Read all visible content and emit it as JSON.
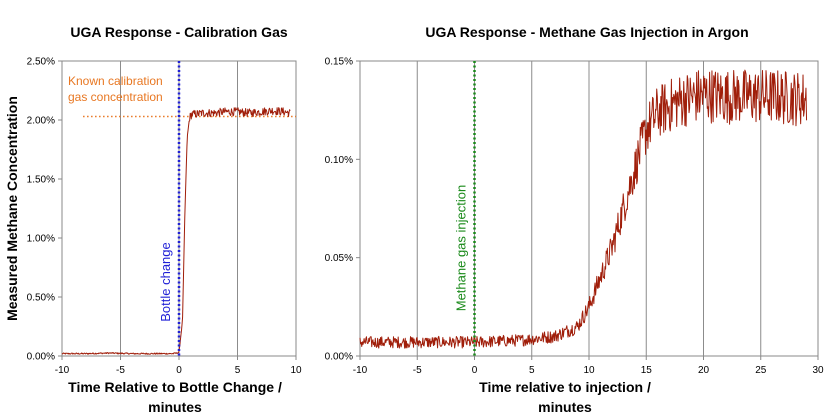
{
  "chart_data": [
    {
      "type": "line",
      "title": "UGA Response - Calibration Gas",
      "xlabel_lines": [
        "Time Relative to Bottle Change /",
        "minutes"
      ],
      "ylabel": "Measured Methane Concentration",
      "xlim": [
        -10,
        10
      ],
      "ylim": [
        0,
        2.5
      ],
      "xticks": [
        -10,
        -5,
        0,
        5,
        10
      ],
      "yticks": [
        0,
        0.5,
        1.0,
        1.5,
        2.0,
        2.5
      ],
      "ytick_labels": [
        "0.00%",
        "0.50%",
        "1.00%",
        "1.50%",
        "2.00%",
        "2.50%"
      ],
      "grid": "vertical",
      "series": [
        {
          "name": "UGA Response",
          "color": "#a01e0a",
          "x": [
            -10,
            -8,
            -6,
            -4,
            -2,
            -0.5,
            0,
            0.3,
            0.5,
            0.7,
            0.9,
            1.1,
            1.5,
            2,
            3,
            4,
            5,
            6,
            7,
            8,
            9,
            9.5
          ],
          "y": [
            0.02,
            0.02,
            0.025,
            0.02,
            0.02,
            0.02,
            0.03,
            0.3,
            1.2,
            1.85,
            2.02,
            2.05,
            2.05,
            2.06,
            2.06,
            2.07,
            2.07,
            2.06,
            2.07,
            2.08,
            2.07,
            2.06
          ]
        }
      ],
      "annotations": [
        {
          "type": "hline",
          "y": 2.03,
          "x_from": -8.2,
          "x_to": 10,
          "color": "#e87722",
          "style": "dotted",
          "label_lines": [
            "Known calibration",
            "gas concentration"
          ]
        },
        {
          "type": "vline",
          "x": 0,
          "color": "#1f1fd6",
          "style": "dotted",
          "label": "Bottle change"
        }
      ]
    },
    {
      "type": "line",
      "title": "UGA Response - Methane Gas Injection in Argon",
      "xlabel_lines": [
        "Time relative to injection /",
        "minutes"
      ],
      "ylabel": "",
      "xlim": [
        -10,
        30
      ],
      "ylim": [
        0,
        0.15
      ],
      "xticks": [
        -10,
        -5,
        0,
        5,
        10,
        15,
        20,
        25,
        30
      ],
      "yticks": [
        0,
        0.05,
        0.1,
        0.15
      ],
      "ytick_labels": [
        "0.00%",
        "0.05%",
        "0.10%",
        "0.15%"
      ],
      "grid": "vertical",
      "series": [
        {
          "name": "UGA Response",
          "color": "#a01e0a",
          "x": [
            -10,
            -5,
            0,
            4,
            7,
            9,
            10,
            11,
            12,
            13,
            14,
            15,
            16,
            18,
            20,
            22,
            24,
            26,
            28,
            29
          ],
          "y": [
            0.007,
            0.007,
            0.007,
            0.008,
            0.01,
            0.015,
            0.025,
            0.04,
            0.055,
            0.075,
            0.095,
            0.115,
            0.124,
            0.13,
            0.133,
            0.132,
            0.132,
            0.132,
            0.131,
            0.131
          ]
        }
      ],
      "annotations": [
        {
          "type": "vline",
          "x": 0,
          "color": "#1a8a1a",
          "style": "dotted",
          "label": "Methane gas injection"
        }
      ]
    }
  ]
}
